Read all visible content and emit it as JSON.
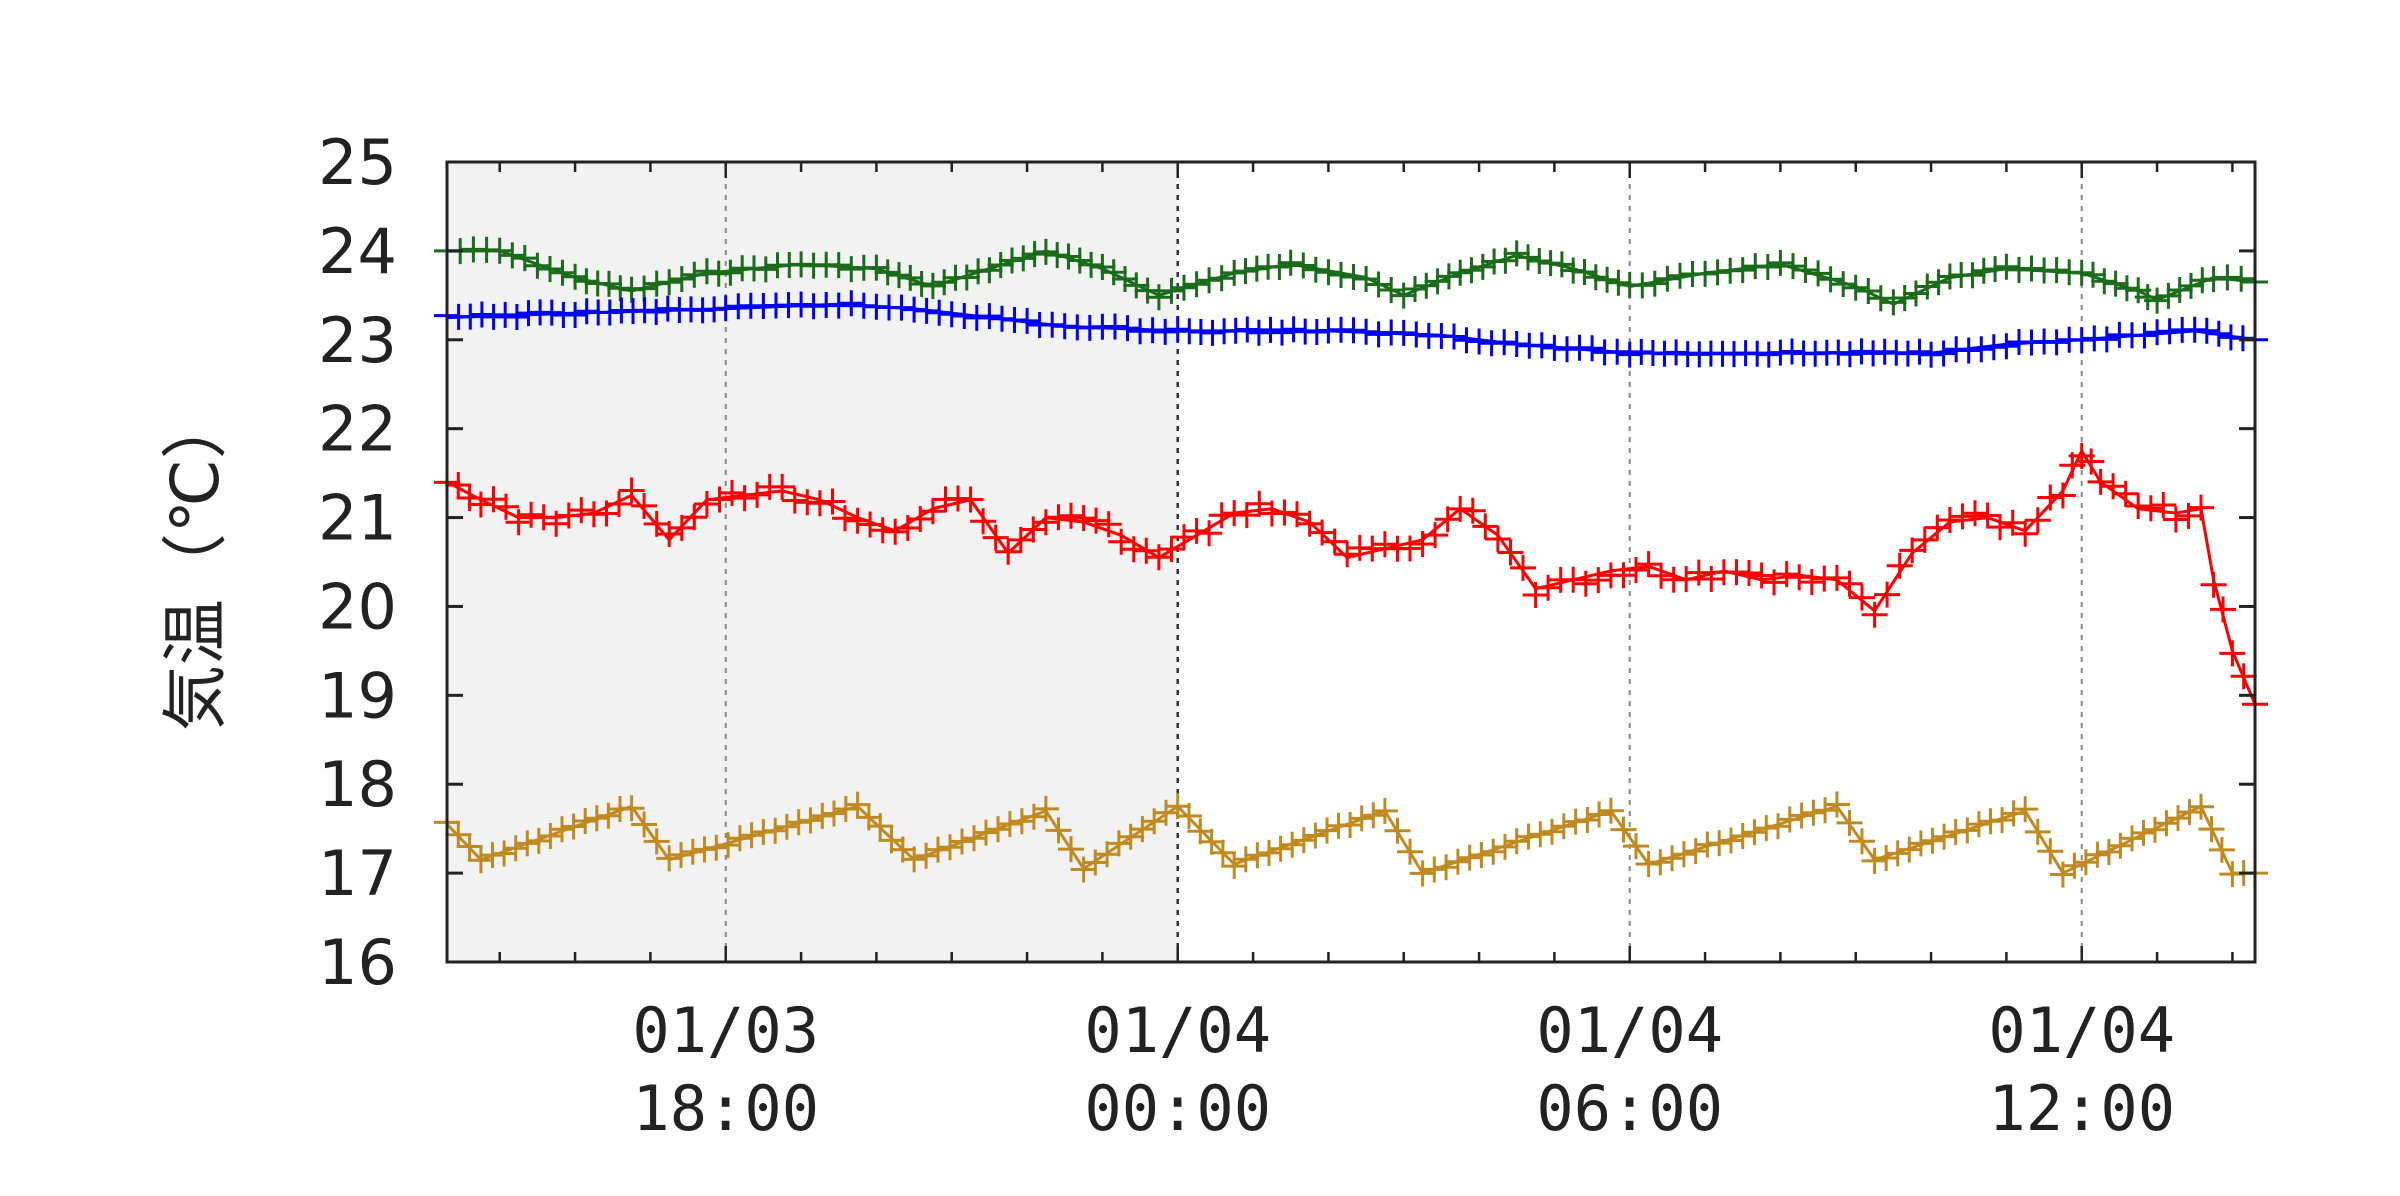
{
  "chart_data": {
    "type": "line",
    "title": "",
    "ylabel": "気温（℃）",
    "xlabel": "",
    "x_range": [
      "2025-01-03 14:18",
      "2025-01-04 14:18"
    ],
    "ylim": [
      16,
      25
    ],
    "y_ticks": [
      "16",
      "17",
      "18",
      "19",
      "20",
      "21",
      "22",
      "23",
      "24",
      "25"
    ],
    "x_ticks": [
      {
        "at": "2025-01-03 18:00",
        "line1": "01/03",
        "line2": "18:00"
      },
      {
        "at": "2025-01-04 00:00",
        "line1": "01/04",
        "line2": "00:00"
      },
      {
        "at": "2025-01-04 06:00",
        "line1": "01/04",
        "line2": "06:00"
      },
      {
        "at": "2025-01-04 12:00",
        "line1": "01/04",
        "line2": "12:00"
      }
    ],
    "shaded_period": [
      "2025-01-03 14:18",
      "2025-01-04 00:00"
    ],
    "grid": "vertical dashed at labeled ticks",
    "marker": "+",
    "colors": {
      "shade": "#f2f2f2",
      "grid": "#888888"
    },
    "series": [
      {
        "color": "#1a6b1a",
        "points": [
          [
            "2025-01-03 14:18",
            24.0
          ],
          [
            "2025-01-03 15:00",
            24.0
          ],
          [
            "2025-01-03 16:00",
            23.7
          ],
          [
            "2025-01-03 16:45",
            23.55
          ],
          [
            "2025-01-03 17:45",
            23.75
          ],
          [
            "2025-01-03 19:00",
            23.85
          ],
          [
            "2025-01-03 20:00",
            23.8
          ],
          [
            "2025-01-03 20:45",
            23.6
          ],
          [
            "2025-01-03 21:30",
            23.8
          ],
          [
            "2025-01-03 22:15",
            24.0
          ],
          [
            "2025-01-03 23:00",
            23.8
          ],
          [
            "2025-01-03 23:45",
            23.5
          ],
          [
            "2025-01-04 00:45",
            23.75
          ],
          [
            "2025-01-04 01:30",
            23.85
          ],
          [
            "2025-01-04 02:30",
            23.7
          ],
          [
            "2025-01-04 03:00",
            23.5
          ],
          [
            "2025-01-04 03:45",
            23.75
          ],
          [
            "2025-01-04 04:30",
            23.95
          ],
          [
            "2025-01-04 05:15",
            23.8
          ],
          [
            "2025-01-04 06:00",
            23.6
          ],
          [
            "2025-01-04 07:00",
            23.75
          ],
          [
            "2025-01-04 08:00",
            23.85
          ],
          [
            "2025-01-04 09:00",
            23.6
          ],
          [
            "2025-01-04 09:30",
            23.4
          ],
          [
            "2025-01-04 10:15",
            23.7
          ],
          [
            "2025-01-04 11:00",
            23.8
          ],
          [
            "2025-01-04 12:00",
            23.75
          ],
          [
            "2025-01-04 12:45",
            23.55
          ],
          [
            "2025-01-04 13:00",
            23.45
          ],
          [
            "2025-01-04 13:45",
            23.7
          ],
          [
            "2025-01-04 14:18",
            23.65
          ]
        ]
      },
      {
        "color": "#0000ff",
        "points": [
          [
            "2025-01-03 14:18",
            23.25
          ],
          [
            "2025-01-03 16:00",
            23.3
          ],
          [
            "2025-01-03 18:00",
            23.35
          ],
          [
            "2025-01-03 19:30",
            23.4
          ],
          [
            "2025-01-03 20:30",
            23.35
          ],
          [
            "2025-01-03 21:30",
            23.25
          ],
          [
            "2025-01-03 22:30",
            23.15
          ],
          [
            "2025-01-04 00:00",
            23.1
          ],
          [
            "2025-01-04 02:00",
            23.1
          ],
          [
            "2025-01-04 03:30",
            23.05
          ],
          [
            "2025-01-04 04:30",
            22.95
          ],
          [
            "2025-01-04 06:00",
            22.85
          ],
          [
            "2025-01-04 08:00",
            22.85
          ],
          [
            "2025-01-04 10:00",
            22.85
          ],
          [
            "2025-01-04 11:00",
            22.95
          ],
          [
            "2025-01-04 12:00",
            23.0
          ],
          [
            "2025-01-04 13:30",
            23.1
          ],
          [
            "2025-01-04 14:18",
            23.0
          ]
        ]
      },
      {
        "color": "#ff0000",
        "points": [
          [
            "2025-01-03 14:18",
            21.4
          ],
          [
            "2025-01-03 14:45",
            21.2
          ],
          [
            "2025-01-03 15:15",
            21.0
          ],
          [
            "2025-01-03 15:45",
            21.0
          ],
          [
            "2025-01-03 16:15",
            21.05
          ],
          [
            "2025-01-03 16:45",
            21.25
          ],
          [
            "2025-01-03 17:15",
            20.75
          ],
          [
            "2025-01-03 17:45",
            21.2
          ],
          [
            "2025-01-03 18:15",
            21.25
          ],
          [
            "2025-01-03 18:45",
            21.3
          ],
          [
            "2025-01-03 19:15",
            21.2
          ],
          [
            "2025-01-03 19:45",
            21.0
          ],
          [
            "2025-01-03 20:15",
            20.85
          ],
          [
            "2025-01-03 20:45",
            21.1
          ],
          [
            "2025-01-03 21:15",
            21.2
          ],
          [
            "2025-01-03 21:45",
            20.6
          ],
          [
            "2025-01-03 22:15",
            21.0
          ],
          [
            "2025-01-03 22:45",
            20.95
          ],
          [
            "2025-01-03 23:15",
            20.8
          ],
          [
            "2025-01-03 23:45",
            20.55
          ],
          [
            "2025-01-04 00:15",
            20.8
          ],
          [
            "2025-01-04 00:45",
            21.05
          ],
          [
            "2025-01-04 01:15",
            21.1
          ],
          [
            "2025-01-04 01:45",
            20.95
          ],
          [
            "2025-01-04 02:15",
            20.55
          ],
          [
            "2025-01-04 02:45",
            20.65
          ],
          [
            "2025-01-04 03:15",
            20.75
          ],
          [
            "2025-01-04 03:45",
            21.1
          ],
          [
            "2025-01-04 04:15",
            20.8
          ],
          [
            "2025-01-04 04:45",
            20.2
          ],
          [
            "2025-01-04 05:15",
            20.3
          ],
          [
            "2025-01-04 05:45",
            20.4
          ],
          [
            "2025-01-04 06:15",
            20.45
          ],
          [
            "2025-01-04 06:45",
            20.3
          ],
          [
            "2025-01-04 07:15",
            20.4
          ],
          [
            "2025-01-04 07:45",
            20.3
          ],
          [
            "2025-01-04 08:15",
            20.35
          ],
          [
            "2025-01-04 08:45",
            20.3
          ],
          [
            "2025-01-04 09:15",
            19.95
          ],
          [
            "2025-01-04 09:45",
            20.6
          ],
          [
            "2025-01-04 10:15",
            20.95
          ],
          [
            "2025-01-04 10:45",
            21.0
          ],
          [
            "2025-01-04 11:15",
            20.85
          ],
          [
            "2025-01-04 11:45",
            21.3
          ],
          [
            "2025-01-04 12:00",
            21.75
          ],
          [
            "2025-01-04 12:15",
            21.4
          ],
          [
            "2025-01-04 12:45",
            21.1
          ],
          [
            "2025-01-04 13:15",
            21.05
          ],
          [
            "2025-01-04 13:35",
            21.1
          ],
          [
            "2025-01-04 13:45",
            20.3
          ],
          [
            "2025-01-04 14:00",
            19.5
          ],
          [
            "2025-01-04 14:18",
            18.9
          ]
        ]
      },
      {
        "color": "#c08a20",
        "points": [
          [
            "2025-01-03 14:18",
            17.55
          ],
          [
            "2025-01-03 14:45",
            17.15
          ],
          [
            "2025-01-03 16:45",
            17.75
          ],
          [
            "2025-01-03 17:15",
            17.15
          ],
          [
            "2025-01-03 19:45",
            17.75
          ],
          [
            "2025-01-03 20:30",
            17.15
          ],
          [
            "2025-01-03 22:15",
            17.7
          ],
          [
            "2025-01-03 22:45",
            17.05
          ],
          [
            "2025-01-04 00:00",
            17.75
          ],
          [
            "2025-01-04 00:45",
            17.1
          ],
          [
            "2025-01-04 02:45",
            17.7
          ],
          [
            "2025-01-04 03:15",
            17.0
          ],
          [
            "2025-01-04 05:45",
            17.7
          ],
          [
            "2025-01-04 06:15",
            17.1
          ],
          [
            "2025-01-04 08:45",
            17.75
          ],
          [
            "2025-01-04 09:15",
            17.15
          ],
          [
            "2025-01-04 11:15",
            17.7
          ],
          [
            "2025-01-04 11:45",
            17.0
          ],
          [
            "2025-01-04 13:35",
            17.75
          ],
          [
            "2025-01-04 14:00",
            17.0
          ],
          [
            "2025-01-04 14:18",
            17.0
          ]
        ]
      }
    ]
  }
}
